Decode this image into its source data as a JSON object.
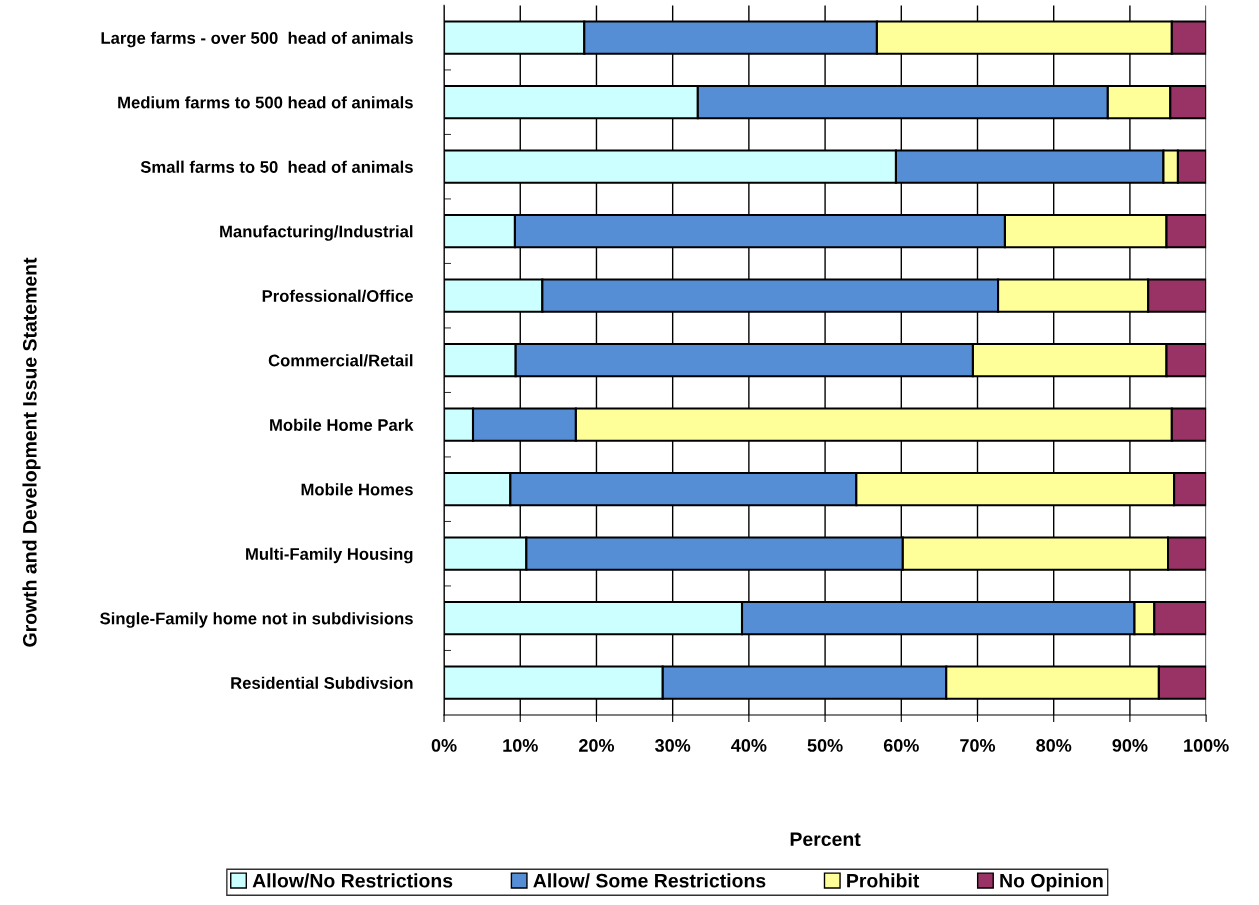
{
  "chart_data": {
    "type": "bar",
    "orientation": "horizontal",
    "stacked": true,
    "xlabel": "Percent",
    "ylabel": "Growth and Development Issue Statement",
    "categories": [
      "Large farms - over 500  head of animals",
      "Medium farms to 500 head of animals",
      "Small farms to 50  head of animals",
      "Manufacturing/Industrial",
      "Professional/Office",
      "Commercial/Retail",
      "Mobile Home Park",
      "Mobile Homes",
      "Multi-Family Housing",
      "Single-Family home not in subdivisions",
      "Residential Subdivsion"
    ],
    "series": [
      {
        "name": "Allow/No Restrictions",
        "color": "#ccffff",
        "values": [
          18.4,
          33.3,
          59.3,
          9.3,
          12.9,
          9.4,
          3.8,
          8.7,
          10.8,
          39.1,
          28.7
        ]
      },
      {
        "name": "Allow/ Some Restrictions",
        "color": "#558ed5",
        "values": [
          38.4,
          53.8,
          35.1,
          64.3,
          59.8,
          60.0,
          13.5,
          45.4,
          49.4,
          51.5,
          37.2
        ]
      },
      {
        "name": "Prohibit",
        "color": "#ffff99",
        "values": [
          38.7,
          8.2,
          1.9,
          21.2,
          19.7,
          25.4,
          78.2,
          41.7,
          34.8,
          2.6,
          27.9
        ]
      },
      {
        "name": "No Opinion",
        "color": "#993366",
        "values": [
          4.5,
          4.7,
          3.7,
          5.2,
          7.6,
          5.2,
          4.5,
          4.2,
          5.0,
          6.8,
          6.2
        ]
      }
    ],
    "xlim": [
      0,
      100
    ],
    "xticks": [
      {
        "value": 0,
        "label": "0%"
      },
      {
        "value": 10,
        "label": "10%"
      },
      {
        "value": 20,
        "label": "20%"
      },
      {
        "value": 30,
        "label": "30%"
      },
      {
        "value": 40,
        "label": "40%"
      },
      {
        "value": 50,
        "label": "50%"
      },
      {
        "value": 60,
        "label": "60%"
      },
      {
        "value": 70,
        "label": "70%"
      },
      {
        "value": 80,
        "label": "80%"
      },
      {
        "value": 90,
        "label": "90%"
      },
      {
        "value": 100,
        "label": "100%"
      }
    ],
    "grid": "x",
    "legend": "bottom"
  }
}
